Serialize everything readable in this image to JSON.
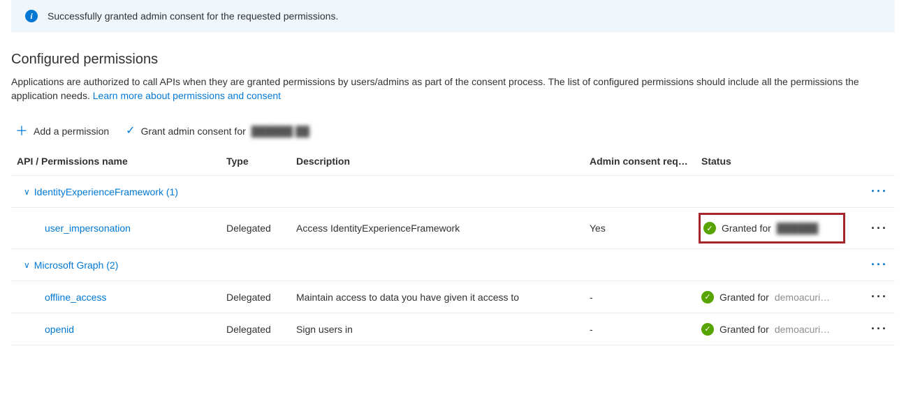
{
  "notification": {
    "message": "Successfully granted admin consent for the requested permissions."
  },
  "section": {
    "title": "Configured permissions",
    "description_part1": "Applications are authorized to call APIs when they are granted permissions by users/admins as part of the consent process. The list of configured permissions should include all the permissions the application needs. ",
    "learn_more": "Learn more about permissions and consent"
  },
  "toolbar": {
    "add_permission": "Add a permission",
    "grant_consent_prefix": "Grant admin consent for ",
    "tenant_name_obscured": "██████ ██"
  },
  "columns": {
    "name": "API / Permissions name",
    "type": "Type",
    "description": "Description",
    "admin_consent": "Admin consent req…",
    "status": "Status"
  },
  "groups": [
    {
      "label": "IdentityExperienceFramework (1)",
      "permissions": [
        {
          "name": "user_impersonation",
          "type": "Delegated",
          "description": "Access IdentityExperienceFramework",
          "admin_consent": "Yes",
          "status_prefix": "Granted for ",
          "status_tenant": "██████",
          "highlighted": true
        }
      ]
    },
    {
      "label": "Microsoft Graph (2)",
      "permissions": [
        {
          "name": "offline_access",
          "type": "Delegated",
          "description": "Maintain access to data you have given it access to",
          "admin_consent": "-",
          "status_prefix": "Granted for ",
          "status_tenant": "demoacuri…",
          "highlighted": false
        },
        {
          "name": "openid",
          "type": "Delegated",
          "description": "Sign users in",
          "admin_consent": "-",
          "status_prefix": "Granted for ",
          "status_tenant": "demoacuri…",
          "highlighted": false
        }
      ]
    }
  ],
  "colors": {
    "link": "#0078d4",
    "notification_bg": "#eff6fc",
    "success_green": "#57a300",
    "highlight_border": "#a4262c",
    "text": "#323130",
    "border": "#edebe9"
  }
}
